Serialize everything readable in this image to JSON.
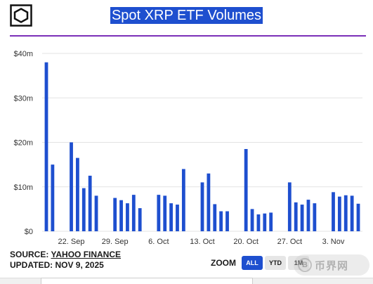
{
  "header": {
    "title": "Spot XRP ETF Volumes"
  },
  "footer": {
    "source_prefix": "SOURCE: ",
    "source_name": "YAHOO FINANCE",
    "updated": "UPDATED: NOV 9, 2025"
  },
  "zoom": {
    "label": "ZOOM",
    "options": [
      "ALL",
      "YTD",
      "1M"
    ],
    "active": "ALL"
  },
  "watermark": {
    "text": "币界网"
  },
  "colors": {
    "bar": "#1e4fcf",
    "title_bg": "#1e4fcf",
    "rule": "#7b2fb8",
    "grid": "#e3e3e3"
  },
  "chart_data": {
    "type": "bar",
    "title": "Spot XRP ETF Volumes",
    "ylabel": "",
    "xlabel": "",
    "ylim": [
      0,
      40
    ],
    "y_ticks": [
      0,
      10,
      20,
      30,
      40
    ],
    "y_tick_labels": [
      "$0",
      "$10m",
      "$20m",
      "$30m",
      "$40m"
    ],
    "x_ticks": [
      {
        "label": "22. Sep",
        "at": "2025-09-22"
      },
      {
        "label": "29. Sep",
        "at": "2025-09-29"
      },
      {
        "label": "6. Oct",
        "at": "2025-10-06"
      },
      {
        "label": "13. Oct",
        "at": "2025-10-13"
      },
      {
        "label": "20. Oct",
        "at": "2025-10-20"
      },
      {
        "label": "27. Oct",
        "at": "2025-10-27"
      },
      {
        "label": "3. Nov",
        "at": "2025-11-03"
      }
    ],
    "x_range": [
      "2025-09-18",
      "2025-11-07"
    ],
    "unit": "USD millions",
    "grid": true,
    "legend": "none",
    "points": [
      {
        "date": "2025-09-18",
        "value": 38
      },
      {
        "date": "2025-09-19",
        "value": 15
      },
      {
        "date": "2025-09-22",
        "value": 20
      },
      {
        "date": "2025-09-23",
        "value": 16.5
      },
      {
        "date": "2025-09-24",
        "value": 9.7
      },
      {
        "date": "2025-09-25",
        "value": 12.5
      },
      {
        "date": "2025-09-26",
        "value": 8
      },
      {
        "date": "2025-09-29",
        "value": 7.5
      },
      {
        "date": "2025-09-30",
        "value": 7
      },
      {
        "date": "2025-10-01",
        "value": 6.3
      },
      {
        "date": "2025-10-02",
        "value": 8.2
      },
      {
        "date": "2025-10-03",
        "value": 5.2
      },
      {
        "date": "2025-10-06",
        "value": 8.2
      },
      {
        "date": "2025-10-07",
        "value": 8
      },
      {
        "date": "2025-10-08",
        "value": 6.3
      },
      {
        "date": "2025-10-09",
        "value": 6
      },
      {
        "date": "2025-10-10",
        "value": 14
      },
      {
        "date": "2025-10-13",
        "value": 11
      },
      {
        "date": "2025-10-14",
        "value": 13
      },
      {
        "date": "2025-10-15",
        "value": 6.1
      },
      {
        "date": "2025-10-16",
        "value": 4.5
      },
      {
        "date": "2025-10-17",
        "value": 4.5
      },
      {
        "date": "2025-10-20",
        "value": 18.5
      },
      {
        "date": "2025-10-21",
        "value": 5
      },
      {
        "date": "2025-10-22",
        "value": 3.8
      },
      {
        "date": "2025-10-23",
        "value": 4
      },
      {
        "date": "2025-10-24",
        "value": 4.2
      },
      {
        "date": "2025-10-27",
        "value": 11
      },
      {
        "date": "2025-10-28",
        "value": 6.5
      },
      {
        "date": "2025-10-29",
        "value": 6
      },
      {
        "date": "2025-10-30",
        "value": 7.1
      },
      {
        "date": "2025-10-31",
        "value": 6.3
      },
      {
        "date": "2025-11-03",
        "value": 8.8
      },
      {
        "date": "2025-11-04",
        "value": 7.8
      },
      {
        "date": "2025-11-05",
        "value": 8.1
      },
      {
        "date": "2025-11-06",
        "value": 8
      },
      {
        "date": "2025-11-07",
        "value": 6.2
      }
    ]
  }
}
